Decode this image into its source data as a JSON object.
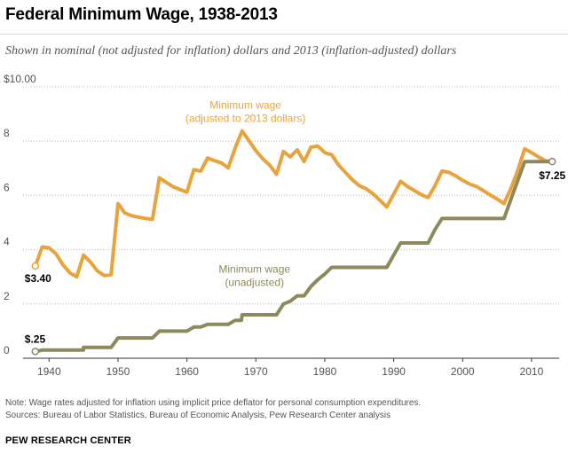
{
  "header": {
    "title": "Federal Minimum Wage, 1938-2013",
    "subtitle": "Shown in nominal (not adjusted for inflation) dollars and 2013 (inflation-adjusted) dollars"
  },
  "footer": {
    "note": "Note: Wage rates adjusted for inflation using implicit price deflator for personal consumption expenditures.",
    "sources": "Sources: Bureau of Labor Statistics, Bureau of Economic Analysis, Pew Research Center analysis",
    "brand": "PEW RESEARCH CENTER"
  },
  "colors": {
    "adjusted": "#e8a33d",
    "nominal": "#8c8a5d",
    "grid": "#bdbdbd",
    "axis": "#333333"
  },
  "chart_data": {
    "type": "line",
    "xlim": [
      1937,
      2014
    ],
    "ylim": [
      0,
      10
    ],
    "xticks": [
      1940,
      1950,
      1960,
      1970,
      1980,
      1990,
      2000,
      2010
    ],
    "yticks": [
      0,
      2,
      4,
      6,
      8,
      10
    ],
    "ytick_labels": [
      "0",
      "2",
      "4",
      "6",
      "8",
      "$10.00"
    ],
    "grid": true,
    "series": [
      {
        "name": "Minimum wage\n(adjusted to 2013 dollars)",
        "color": "#e8a33d",
        "x": [
          1938,
          1939,
          1940,
          1941,
          1942,
          1943,
          1944,
          1945,
          1946,
          1947,
          1948,
          1949,
          1950,
          1951,
          1952,
          1953,
          1954,
          1955,
          1956,
          1957,
          1958,
          1959,
          1960,
          1961,
          1962,
          1963,
          1964,
          1965,
          1966,
          1967,
          1968,
          1969,
          1970,
          1971,
          1972,
          1973,
          1974,
          1975,
          1976,
          1977,
          1978,
          1979,
          1980,
          1981,
          1982,
          1983,
          1984,
          1985,
          1986,
          1987,
          1988,
          1989,
          1990,
          1991,
          1992,
          1993,
          1994,
          1995,
          1996,
          1997,
          1998,
          1999,
          2000,
          2001,
          2002,
          2003,
          2004,
          2005,
          2006,
          2007,
          2008,
          2009,
          2010,
          2011,
          2012,
          2013
        ],
        "y": [
          3.4,
          4.1,
          4.07,
          3.85,
          3.45,
          3.15,
          3.0,
          3.8,
          3.55,
          3.22,
          3.05,
          3.08,
          5.7,
          5.35,
          5.25,
          5.2,
          5.15,
          5.12,
          6.65,
          6.48,
          6.32,
          6.22,
          6.12,
          6.95,
          6.9,
          7.38,
          7.28,
          7.2,
          7.02,
          7.75,
          8.38,
          8.02,
          7.65,
          7.35,
          7.12,
          6.78,
          7.62,
          7.42,
          7.68,
          7.25,
          7.78,
          7.82,
          7.58,
          7.5,
          7.12,
          6.85,
          6.58,
          6.36,
          6.25,
          6.06,
          5.82,
          5.58,
          6.05,
          6.52,
          6.33,
          6.18,
          6.03,
          5.92,
          6.36,
          6.9,
          6.85,
          6.72,
          6.56,
          6.42,
          6.33,
          6.18,
          6.02,
          5.87,
          5.7,
          6.25,
          6.92,
          7.72,
          7.58,
          7.42,
          7.28,
          7.25
        ]
      },
      {
        "name": "Minimum wage\n(unadjusted)",
        "color": "#8c8a5d",
        "x": [
          1938,
          1939,
          1945,
          1945,
          1949,
          1950,
          1955,
          1956,
          1960,
          1961,
          1962,
          1963,
          1966,
          1967,
          1967.9,
          1968,
          1973,
          1974,
          1975,
          1976,
          1977,
          1978,
          1979,
          1980,
          1981,
          1989,
          1990,
          1991,
          1995,
          1996,
          1997,
          2006,
          2007,
          2008,
          2009,
          2013
        ],
        "y": [
          0.25,
          0.3,
          0.3,
          0.4,
          0.4,
          0.75,
          0.75,
          1.0,
          1.0,
          1.15,
          1.15,
          1.25,
          1.25,
          1.4,
          1.4,
          1.6,
          1.6,
          2.0,
          2.1,
          2.3,
          2.3,
          2.65,
          2.9,
          3.1,
          3.35,
          3.35,
          3.8,
          4.25,
          4.25,
          4.75,
          5.15,
          5.15,
          5.85,
          6.55,
          7.25,
          7.25
        ]
      }
    ],
    "annotations": [
      {
        "text": "$3.40",
        "x": 1938,
        "y": 3.4
      },
      {
        "text": "$.25",
        "x": 1938,
        "y": 0.25
      },
      {
        "text": "$7.25",
        "x": 2013,
        "y": 7.25
      }
    ]
  }
}
